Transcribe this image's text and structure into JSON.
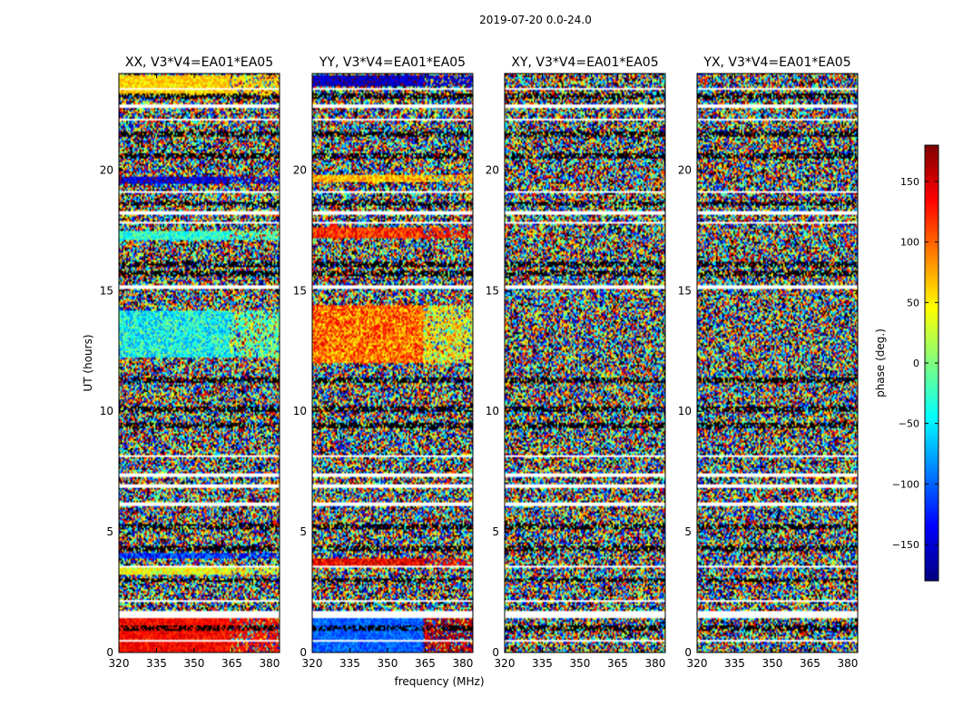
{
  "chart_data": {
    "type": "heatmap",
    "suptitle": "2019-07-20 0.0-24.0",
    "xlabel": "frequency (MHz)",
    "ylabel": "UT (hours)",
    "xlim": [
      320,
      384
    ],
    "ylim": [
      0,
      24
    ],
    "xticks": [
      320,
      335,
      350,
      365,
      380
    ],
    "yticks": [
      0,
      5,
      10,
      15,
      20
    ],
    "panels": [
      {
        "title": "XX, V3*V4=EA01*EA05",
        "segments": [
          {
            "from": 0.0,
            "to": 1.4,
            "kind": "smooth",
            "phase": 135,
            "phase_hi": 135,
            "break": 364,
            "noise": 25
          },
          {
            "from": 3.2,
            "to": 3.5,
            "kind": "smooth",
            "phase": 40,
            "phase_hi": 40,
            "break": 364,
            "noise": 40
          },
          {
            "from": 3.9,
            "to": 4.1,
            "kind": "smooth",
            "phase": -120,
            "phase_hi": -120,
            "break": 364,
            "noise": 40
          },
          {
            "from": 12.2,
            "to": 14.2,
            "kind": "smooth",
            "phase": -40,
            "phase_hi": -10,
            "break": 364,
            "noise": 55
          },
          {
            "from": 17.1,
            "to": 17.5,
            "kind": "smooth",
            "phase": -30,
            "phase_hi": -30,
            "break": 364,
            "noise": 40
          },
          {
            "from": 19.4,
            "to": 19.7,
            "kind": "smooth",
            "phase": -150,
            "phase_hi": -150,
            "break": 364,
            "noise": 40
          },
          {
            "from": 23.1,
            "to": 23.9,
            "kind": "smooth",
            "phase": 60,
            "phase_hi": 60,
            "break": 364,
            "noise": 30
          }
        ]
      },
      {
        "title": "YY, V3*V4=EA01*EA05",
        "segments": [
          {
            "from": 0.0,
            "to": 1.4,
            "kind": "smooth",
            "phase": -100,
            "phase_hi": 165,
            "break": 364,
            "noise": 25
          },
          {
            "from": 3.6,
            "to": 3.9,
            "kind": "smooth",
            "phase": 140,
            "phase_hi": 140,
            "break": 364,
            "noise": 40
          },
          {
            "from": 12.0,
            "to": 14.4,
            "kind": "smooth",
            "phase": 95,
            "phase_hi": 40,
            "break": 364,
            "noise": 55
          },
          {
            "from": 17.2,
            "to": 17.6,
            "kind": "smooth",
            "phase": 120,
            "phase_hi": 120,
            "break": 364,
            "noise": 40
          },
          {
            "from": 19.5,
            "to": 19.8,
            "kind": "smooth",
            "phase": 70,
            "phase_hi": 70,
            "break": 364,
            "noise": 40
          },
          {
            "from": 23.5,
            "to": 23.9,
            "kind": "smooth",
            "phase": -160,
            "phase_hi": -160,
            "break": 364,
            "noise": 25
          }
        ]
      },
      {
        "title": "XY, V3*V4=EA01*EA05",
        "segments": []
      },
      {
        "title": "YX, V3*V4=EA01*EA05",
        "segments": []
      }
    ],
    "gaps_ut": [
      [
        0.45,
        0.55
      ],
      [
        1.45,
        1.7
      ],
      [
        2.1,
        2.2
      ],
      [
        3.55,
        3.62
      ],
      [
        6.05,
        6.2
      ],
      [
        6.85,
        6.95
      ],
      [
        7.3,
        7.45
      ],
      [
        8.1,
        8.18
      ],
      [
        15.1,
        15.25
      ],
      [
        17.75,
        17.85
      ],
      [
        18.15,
        18.3
      ],
      [
        19.05,
        19.12
      ],
      [
        22.05,
        22.15
      ],
      [
        22.6,
        22.75
      ],
      [
        23.3,
        23.4
      ]
    ],
    "dark_rows_ut": [
      1.0,
      3.0,
      4.3,
      5.2,
      9.4,
      10.1,
      11.3,
      15.7,
      16.1,
      18.6,
      20.6,
      21.5,
      23.05
    ],
    "colorbar": {
      "label": "phase (deg.)",
      "range": [
        -180,
        180
      ],
      "ticks": [
        150,
        100,
        50,
        0,
        -50,
        -100,
        -150
      ],
      "colormap": "jet"
    }
  }
}
